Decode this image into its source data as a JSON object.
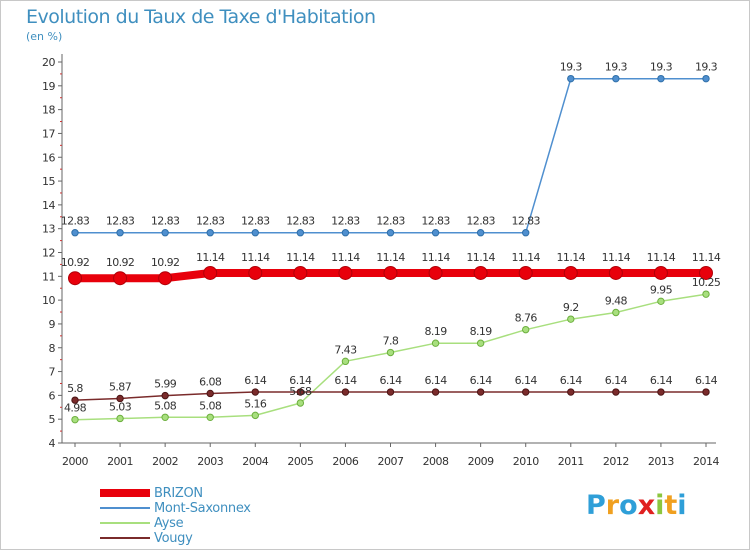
{
  "header": {
    "title": "Evolution du Taux de Taxe d'Habitation",
    "subtitle": "(en %)"
  },
  "logo": {
    "text": "Proxiti",
    "letters": [
      {
        "ch": "P",
        "color": "#2f9fd8"
      },
      {
        "ch": "r",
        "color": "#f0a020"
      },
      {
        "ch": "o",
        "color": "#2f9fd8"
      },
      {
        "ch": "x",
        "color": "#e02020"
      },
      {
        "ch": "i",
        "color": "#8cc63f"
      },
      {
        "ch": "t",
        "color": "#f0a020"
      },
      {
        "ch": "i",
        "color": "#2f9fd8"
      }
    ]
  },
  "chart_data": {
    "type": "line",
    "x": [
      2000,
      2001,
      2002,
      2003,
      2004,
      2005,
      2006,
      2007,
      2008,
      2009,
      2010,
      2011,
      2012,
      2013,
      2014
    ],
    "ylim": [
      4,
      20
    ],
    "yticks": [
      4,
      5,
      6,
      7,
      8,
      9,
      10,
      11,
      12,
      13,
      14,
      15,
      16,
      17,
      18,
      19,
      20
    ],
    "grid": false,
    "legend_position": "bottom-left",
    "series": [
      {
        "name": "BRIZON",
        "color": "#e8000b",
        "values": [
          10.92,
          10.92,
          10.92,
          11.14,
          11.14,
          11.14,
          11.14,
          11.14,
          11.14,
          11.14,
          11.14,
          11.14,
          11.14,
          11.14,
          11.14
        ],
        "labels": [
          "10.92",
          "10.92",
          "10.92",
          "11.14",
          "11.14",
          "11.14",
          "11.14",
          "11.14",
          "11.14",
          "11.14",
          "11.14",
          "11.14",
          "11.14",
          "11.14",
          "11.14"
        ]
      },
      {
        "name": "Mont-Saxonnex",
        "color": "#4f8fcf",
        "values": [
          12.83,
          12.83,
          12.83,
          12.83,
          12.83,
          12.83,
          12.83,
          12.83,
          12.83,
          12.83,
          12.83,
          19.3,
          19.3,
          19.3,
          19.3
        ],
        "labels": [
          "12.83",
          "12.83",
          "12.83",
          "12.83",
          "12.83",
          "12.83",
          "12.83",
          "12.83",
          "12.83",
          "12.83",
          "12.83",
          "19.3",
          "19.3",
          "19.3",
          "19.3"
        ]
      },
      {
        "name": "Ayse",
        "color": "#a8df7e",
        "values": [
          4.98,
          5.03,
          5.08,
          5.08,
          5.16,
          5.68,
          7.43,
          7.8,
          8.19,
          8.19,
          8.76,
          9.2,
          9.48,
          9.95,
          10.25
        ],
        "labels": [
          "4.98",
          "5.03",
          "5.08",
          "5.08",
          "5.16",
          "5.68",
          "7.43",
          "7.8",
          "8.19",
          "8.19",
          "8.76",
          "9.2",
          "9.48",
          "9.95",
          "10.25"
        ]
      },
      {
        "name": "Vougy",
        "color": "#7a2b2b",
        "values": [
          5.8,
          5.87,
          5.99,
          6.08,
          6.14,
          6.14,
          6.14,
          6.14,
          6.14,
          6.14,
          6.14,
          6.14,
          6.14,
          6.14,
          6.14
        ],
        "labels": [
          "5.8",
          "5.87",
          "5.99",
          "6.08",
          "6.14",
          "6.14",
          "6.14",
          "6.14",
          "6.14",
          "6.14",
          "6.14",
          "6.14",
          "6.14",
          "6.14",
          "6.14"
        ]
      }
    ]
  }
}
